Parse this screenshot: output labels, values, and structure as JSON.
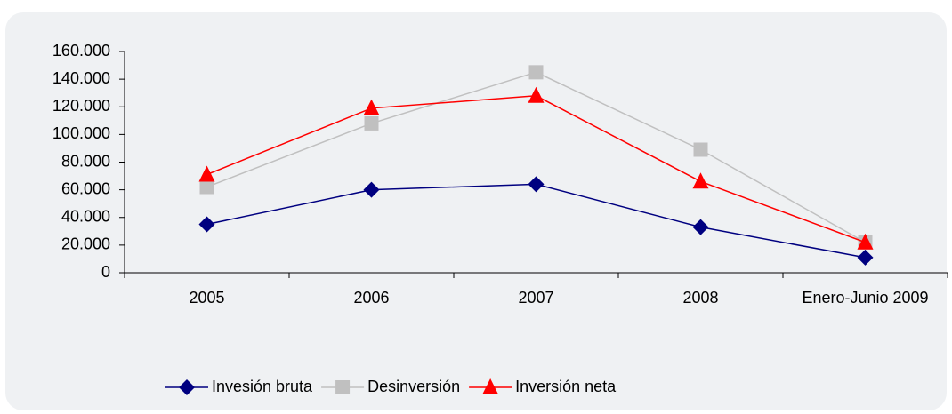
{
  "chart_data": {
    "type": "line",
    "categories": [
      "2005",
      "2006",
      "2007",
      "2008",
      "Enero-Junio 2009"
    ],
    "series": [
      {
        "name": "Invesión bruta",
        "color": "#000080",
        "marker": "diamond",
        "values": [
          35000,
          60000,
          64000,
          33000,
          11000
        ]
      },
      {
        "name": "Desinversión",
        "color": "#c0c0c0",
        "marker": "square",
        "values": [
          62000,
          108000,
          145000,
          89000,
          22000
        ]
      },
      {
        "name": "Inversión neta",
        "color": "#ff0000",
        "marker": "triangle",
        "values": [
          71000,
          119000,
          128000,
          66000,
          22000
        ]
      }
    ],
    "ylim": [
      0,
      160000
    ],
    "yticks": [
      {
        "value": 0,
        "label": "0"
      },
      {
        "value": 20000,
        "label": "20.000"
      },
      {
        "value": 40000,
        "label": "40.000"
      },
      {
        "value": 60000,
        "label": "60.000"
      },
      {
        "value": 80000,
        "label": "80.000"
      },
      {
        "value": 100000,
        "label": "100.000"
      },
      {
        "value": 120000,
        "label": "120.000"
      },
      {
        "value": 140000,
        "label": "140.000"
      },
      {
        "value": 160000,
        "label": "160.000"
      }
    ],
    "grid": false,
    "legend": "bottom"
  }
}
